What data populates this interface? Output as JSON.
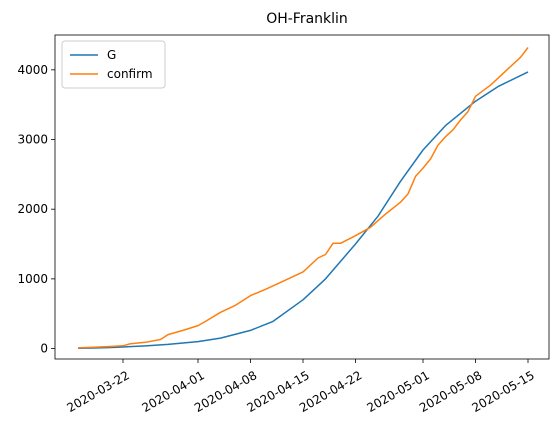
{
  "chart_data": {
    "type": "line",
    "title": "OH-Franklin",
    "xlabel": "",
    "ylabel": "",
    "x_type": "date",
    "xlim": [
      "2020-03-16",
      "2020-05-15"
    ],
    "ylim": [
      -150,
      4500
    ],
    "x_ticks": [
      {
        "date": "2020-03-22",
        "label": "2020-03-22"
      },
      {
        "date": "2020-04-01",
        "label": "2020-04-01"
      },
      {
        "date": "2020-04-08",
        "label": "2020-04-08"
      },
      {
        "date": "2020-04-15",
        "label": "2020-04-15"
      },
      {
        "date": "2020-04-22",
        "label": "2020-04-22"
      },
      {
        "date": "2020-05-01",
        "label": "2020-05-01"
      },
      {
        "date": "2020-05-08",
        "label": "2020-05-08"
      },
      {
        "date": "2020-05-15",
        "label": "2020-05-15"
      }
    ],
    "y_ticks": [
      {
        "value": 0,
        "label": "0"
      },
      {
        "value": 1000,
        "label": "1000"
      },
      {
        "value": 2000,
        "label": "2000"
      },
      {
        "value": 3000,
        "label": "3000"
      },
      {
        "value": 4000,
        "label": "4000"
      }
    ],
    "grid": false,
    "legend": {
      "placement": "top-left"
    },
    "series": [
      {
        "name": "G",
        "color": "#1f77b4",
        "points": [
          [
            "2020-03-16",
            3
          ],
          [
            "2020-03-18",
            8
          ],
          [
            "2020-03-20",
            14
          ],
          [
            "2020-03-22",
            22
          ],
          [
            "2020-03-25",
            38
          ],
          [
            "2020-03-28",
            60
          ],
          [
            "2020-04-01",
            100
          ],
          [
            "2020-04-04",
            150
          ],
          [
            "2020-04-08",
            260
          ],
          [
            "2020-04-11",
            390
          ],
          [
            "2020-04-15",
            700
          ],
          [
            "2020-04-18",
            1000
          ],
          [
            "2020-04-22",
            1500
          ],
          [
            "2020-04-25",
            1900
          ],
          [
            "2020-04-28",
            2400
          ],
          [
            "2020-05-01",
            2850
          ],
          [
            "2020-05-04",
            3200
          ],
          [
            "2020-05-08",
            3550
          ],
          [
            "2020-05-11",
            3760
          ],
          [
            "2020-05-15",
            3970
          ]
        ]
      },
      {
        "name": "confirm",
        "color": "#ff7f0e",
        "points": [
          [
            "2020-03-16",
            10
          ],
          [
            "2020-03-18",
            18
          ],
          [
            "2020-03-20",
            28
          ],
          [
            "2020-03-22",
            40
          ],
          [
            "2020-03-23",
            70
          ],
          [
            "2020-03-25",
            90
          ],
          [
            "2020-03-27",
            130
          ],
          [
            "2020-03-28",
            200
          ],
          [
            "2020-03-30",
            260
          ],
          [
            "2020-04-01",
            330
          ],
          [
            "2020-04-02",
            390
          ],
          [
            "2020-04-04",
            520
          ],
          [
            "2020-04-06",
            620
          ],
          [
            "2020-04-08",
            760
          ],
          [
            "2020-04-10",
            850
          ],
          [
            "2020-04-12",
            950
          ],
          [
            "2020-04-15",
            1100
          ],
          [
            "2020-04-17",
            1300
          ],
          [
            "2020-04-18",
            1350
          ],
          [
            "2020-04-19",
            1510
          ],
          [
            "2020-04-20",
            1510
          ],
          [
            "2020-04-22",
            1620
          ],
          [
            "2020-04-24",
            1740
          ],
          [
            "2020-04-26",
            1930
          ],
          [
            "2020-04-28",
            2100
          ],
          [
            "2020-04-29",
            2220
          ],
          [
            "2020-04-30",
            2470
          ],
          [
            "2020-05-01",
            2590
          ],
          [
            "2020-05-02",
            2720
          ],
          [
            "2020-05-03",
            2920
          ],
          [
            "2020-05-04",
            3040
          ],
          [
            "2020-05-05",
            3140
          ],
          [
            "2020-05-06",
            3280
          ],
          [
            "2020-05-07",
            3400
          ],
          [
            "2020-05-08",
            3620
          ],
          [
            "2020-05-09",
            3700
          ],
          [
            "2020-05-10",
            3780
          ],
          [
            "2020-05-12",
            3980
          ],
          [
            "2020-05-14",
            4180
          ],
          [
            "2020-05-15",
            4320
          ]
        ]
      }
    ]
  }
}
